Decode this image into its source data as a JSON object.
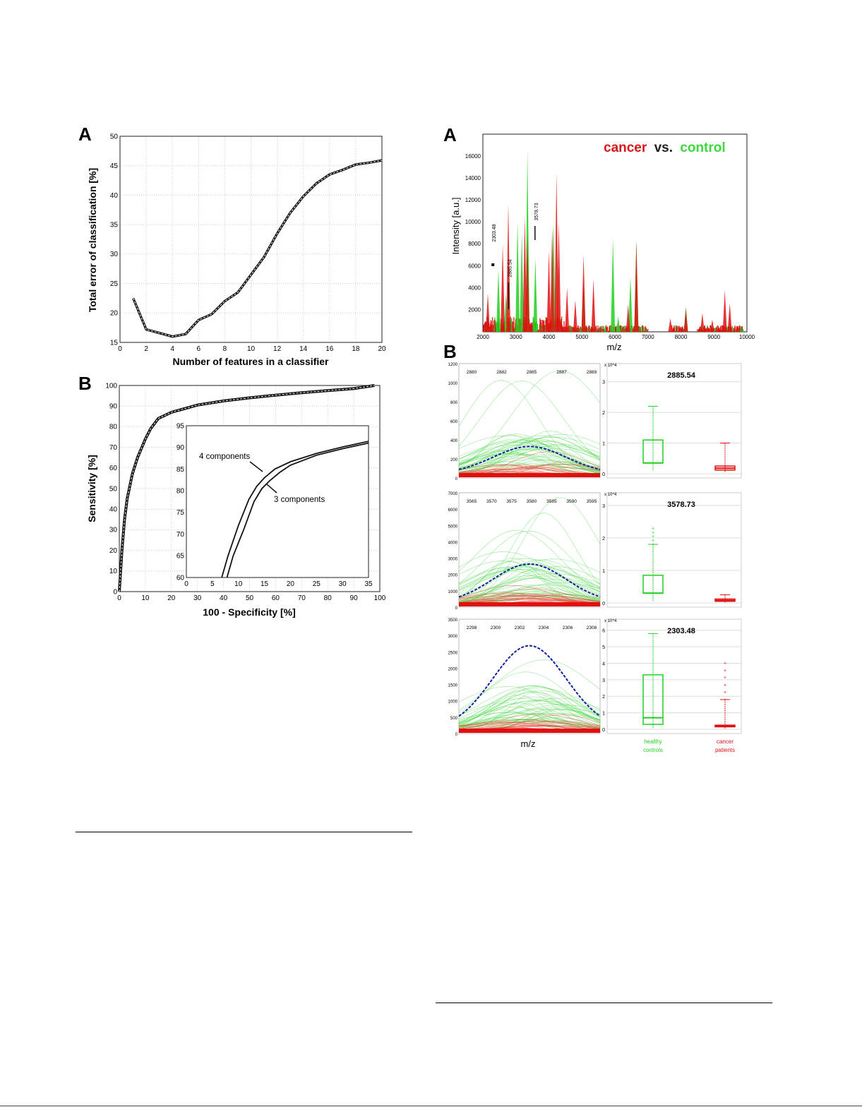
{
  "chart_data": [
    {
      "id": "left-A",
      "panel_label": "A",
      "type": "line",
      "xlabel": "Number of features in a classifier",
      "ylabel": "Total error of classification [%]",
      "xlim": [
        0,
        20
      ],
      "ylim": [
        15,
        50
      ],
      "xticks": [
        0,
        2,
        4,
        6,
        8,
        10,
        12,
        14,
        16,
        18,
        20
      ],
      "yticks": [
        15,
        20,
        25,
        30,
        35,
        40,
        45,
        50
      ],
      "grid": true,
      "x": [
        1,
        2,
        3,
        4,
        5,
        6,
        7,
        8,
        9,
        10,
        11,
        12,
        13,
        14,
        15,
        16,
        17,
        18,
        19,
        20
      ],
      "y": [
        22.5,
        17.2,
        16.6,
        16.0,
        16.4,
        18.8,
        19.8,
        22.0,
        23.5,
        26.5,
        29.5,
        33.5,
        37.0,
        39.8,
        42.0,
        43.5,
        44.3,
        45.2,
        45.5,
        45.9
      ]
    },
    {
      "id": "left-B",
      "panel_label": "B",
      "type": "line",
      "xlabel": "100 - Specificity [%]",
      "ylabel": "Sensitivity [%]",
      "xlim": [
        0,
        100
      ],
      "ylim": [
        0,
        100
      ],
      "xticks": [
        0,
        10,
        20,
        30,
        40,
        50,
        60,
        70,
        80,
        90,
        100
      ],
      "yticks": [
        0,
        10,
        20,
        30,
        40,
        50,
        60,
        70,
        80,
        90,
        100
      ],
      "grid": true,
      "series": [
        {
          "name": "4 components",
          "x": [
            0,
            1,
            2,
            3,
            5,
            7,
            10,
            12,
            15,
            20,
            30,
            40,
            50,
            60,
            70,
            80,
            90,
            98
          ],
          "y": [
            0,
            20,
            35,
            45,
            57,
            65,
            74,
            79,
            84,
            87,
            90.5,
            92.5,
            94,
            95.3,
            96.5,
            97.5,
            98.5,
            100
          ]
        },
        {
          "name": "3 components",
          "x": [
            0,
            1.3,
            2.5,
            3.6,
            5.8,
            8,
            11,
            13,
            16,
            21,
            30,
            40,
            50,
            60,
            70,
            80,
            90,
            98
          ],
          "y": [
            0,
            18,
            33,
            43,
            55,
            63,
            72,
            78,
            83,
            86.5,
            90.3,
            92.4,
            94,
            95.3,
            96.5,
            97.5,
            98.5,
            100
          ]
        }
      ],
      "inset": {
        "xlim": [
          0,
          35
        ],
        "ylim": [
          60,
          95
        ],
        "xticks": [
          0,
          5,
          10,
          15,
          20,
          25,
          30,
          35
        ],
        "yticks": [
          60,
          65,
          70,
          75,
          80,
          85,
          90,
          95
        ],
        "series": [
          {
            "name": "4 components",
            "x": [
              6.8,
              8,
              10,
              12,
              13.5,
              15,
              17,
              20,
              25,
              30,
              35
            ],
            "y": [
              60,
              65,
              72,
              78,
              81,
              83,
              85,
              86.7,
              88.6,
              90.1,
              91.4
            ]
          },
          {
            "name": "3 components",
            "x": [
              7.8,
              9,
              11,
              13,
              14.5,
              16,
              18,
              20,
              25,
              30,
              35
            ],
            "y": [
              60,
              65,
              71,
              77.5,
              80.5,
              82.3,
              84.3,
              85.9,
              88.2,
              89.7,
              91
            ]
          }
        ],
        "annotations": [
          "4 components",
          "3 components"
        ]
      }
    },
    {
      "id": "right-A",
      "panel_label": "A",
      "type": "bar",
      "title_parts": [
        "cancer",
        "vs.",
        "control"
      ],
      "xlabel": "m/z",
      "ylabel": "Intensity [a.u.]",
      "xlim": [
        2000,
        10000
      ],
      "ylim": [
        0,
        18000
      ],
      "xticks": [
        2000,
        3000,
        4000,
        5000,
        6000,
        7000,
        8000,
        9000,
        10000
      ],
      "yticks": [
        0,
        2000,
        4000,
        6000,
        8000,
        10000,
        12000,
        14000,
        16000
      ],
      "series": [
        {
          "name": "cancer",
          "color": "#e01010",
          "peaks": [
            [
              2150,
              3500
            ],
            [
              2600,
              8000
            ],
            [
              2770,
              11700
            ],
            [
              3270,
              10500
            ],
            [
              3350,
              8800
            ],
            [
              4000,
              7400
            ],
            [
              4100,
              9500
            ],
            [
              4230,
              14500
            ],
            [
              4300,
              10000
            ],
            [
              4550,
              4000
            ],
            [
              4800,
              2900
            ],
            [
              5050,
              7000
            ],
            [
              5350,
              4800
            ],
            [
              6400,
              2500
            ],
            [
              6650,
              8200
            ],
            [
              7680,
              1200
            ],
            [
              8150,
              2100
            ],
            [
              8650,
              1700
            ],
            [
              8950,
              1100
            ],
            [
              9330,
              3800
            ],
            [
              9480,
              2600
            ]
          ]
        },
        {
          "name": "control",
          "color": "#20d020",
          "peaks": [
            [
              2470,
              5700
            ],
            [
              2700,
              3500
            ],
            [
              3050,
              10000
            ],
            [
              3180,
              9000
            ],
            [
              3350,
              16500
            ],
            [
              3590,
              6700
            ],
            [
              4140,
              10000
            ],
            [
              5050,
              4500
            ],
            [
              5940,
              8500
            ],
            [
              6100,
              1400
            ],
            [
              6470,
              5000
            ],
            [
              6650,
              8400
            ],
            [
              8150,
              2300
            ]
          ]
        }
      ],
      "annotations": [
        {
          "label": "2303.48",
          "mz": 2303.48
        },
        {
          "label": "2885.54",
          "mz": 2885.54
        },
        {
          "label": "3578.73",
          "mz": 3578.73
        }
      ]
    },
    {
      "id": "right-B",
      "panel_label": "B",
      "type": "line",
      "xlabel": "m/z",
      "rows": [
        {
          "peak": "2885.54",
          "mz_ticks": [
            "2880",
            "2882",
            "2885",
            "2887",
            "2889"
          ],
          "yticks": [
            "0",
            "200",
            "400",
            "600",
            "800",
            "1000",
            "1200"
          ],
          "mean_peak_fraction": 0.14,
          "box_scale": "x 10^4",
          "box_yticks": [
            "0",
            "1",
            "2",
            "3"
          ],
          "box_ymax": 3.5,
          "controls": {
            "min": 0.1,
            "q1": 0.35,
            "median": 0.35,
            "q3": 1.1,
            "max": 2.2
          },
          "patients": {
            "min": 0.05,
            "q1": 0.12,
            "median": 0.18,
            "q3": 0.25,
            "max": 1.0
          }
        },
        {
          "peak": "3578.73",
          "mz_ticks": [
            "3565",
            "3570",
            "3575",
            "3580",
            "3585",
            "3590",
            "3595"
          ],
          "yticks": [
            "0",
            "1000",
            "2000",
            "3000",
            "4000",
            "5000",
            "6000",
            "7000"
          ],
          "mean_peak_fraction": 0.2,
          "box_scale": "x 10^4",
          "box_yticks": [
            "0",
            "1",
            "2",
            "3"
          ],
          "box_ymax": 3.3,
          "controls": {
            "min": 0.05,
            "q1": 0.3,
            "median": 0.3,
            "q3": 0.85,
            "max": 1.8
          },
          "patients": {
            "min": 0.0,
            "q1": 0.05,
            "median": 0.08,
            "q3": 0.12,
            "max": 0.25
          },
          "controls_outlier_max": 2.4
        },
        {
          "peak": "2303.48",
          "mz_ticks": [
            "2298",
            "2300",
            "2302",
            "2304",
            "2306",
            "2308"
          ],
          "yticks": [
            "0",
            "500",
            "1000",
            "1500",
            "2000",
            "2500",
            "3000",
            "3500"
          ],
          "mean_peak_fraction": 0.43,
          "box_scale": "x 10^4",
          "box_yticks": [
            "0",
            "1",
            "2",
            "3",
            "4",
            "5",
            "6"
          ],
          "box_ymax": 6.5,
          "controls": {
            "min": 0.05,
            "q1": 0.3,
            "median": 0.7,
            "q3": 3.3,
            "max": 5.8
          },
          "patients": {
            "min": 0.0,
            "q1": 0.15,
            "median": 0.2,
            "q3": 0.25,
            "max": 1.8
          },
          "patients_outlier_max": 4.0
        }
      ],
      "groups": [
        {
          "line1": "healthy",
          "line2": "controls",
          "color": "#20d020"
        },
        {
          "line1": "cancer",
          "line2": "patients",
          "color": "#e01010"
        }
      ]
    }
  ]
}
